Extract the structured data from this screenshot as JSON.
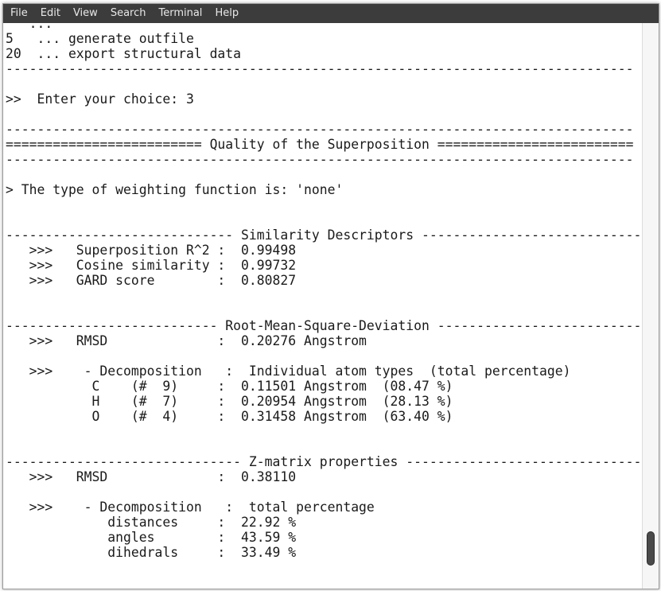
{
  "menubar": {
    "items": [
      "File",
      "Edit",
      "View",
      "Search",
      "Terminal",
      "Help"
    ]
  },
  "terminal": {
    "lines": [
      "   ...",
      "5   ... generate outfile",
      "20  ... export structural data",
      "--------------------------------------------------------------------------------",
      "",
      ">>  Enter your choice: 3",
      "",
      "--------------------------------------------------------------------------------",
      "========================= Quality of the Superposition =========================",
      "--------------------------------------------------------------------------------",
      "",
      "> The type of weighting function is: 'none'",
      "",
      "",
      "----------------------------- Similarity Descriptors ----------------------------",
      "   >>>   Superposition R^2 :  0.99498",
      "   >>>   Cosine similarity :  0.99732",
      "   >>>   GARD score        :  0.80827",
      "",
      "",
      "--------------------------- Root-Mean-Square-Deviation --------------------------",
      "   >>>   RMSD              :  0.20276 Angstrom",
      "",
      "   >>>    - Decomposition   :  Individual atom types  (total percentage)",
      "           C    (#  9)     :  0.11501 Angstrom  (08.47 %)",
      "           H    (#  7)     :  0.20954 Angstrom  (28.13 %)",
      "           O    (#  4)     :  0.31458 Angstrom  (63.40 %)",
      "",
      "",
      "------------------------------ Z-matrix properties ------------------------------",
      "   >>>   RMSD              :  0.38110",
      "",
      "   >>>    - Decomposition   :  total percentage",
      "             distances     :  22.92 %",
      "             angles        :  43.59 %",
      "             dihedrals     :  33.49 %",
      "",
      "",
      "--------------------------------------------------------------------------------"
    ]
  },
  "colors": {
    "menubar_bg": "#3c3c3c",
    "menubar_text": "#e8e8e8",
    "terminal_bg": "#ffffff",
    "terminal_text": "#1a1a1a",
    "scroll_thumb": "#4a4a4a"
  }
}
